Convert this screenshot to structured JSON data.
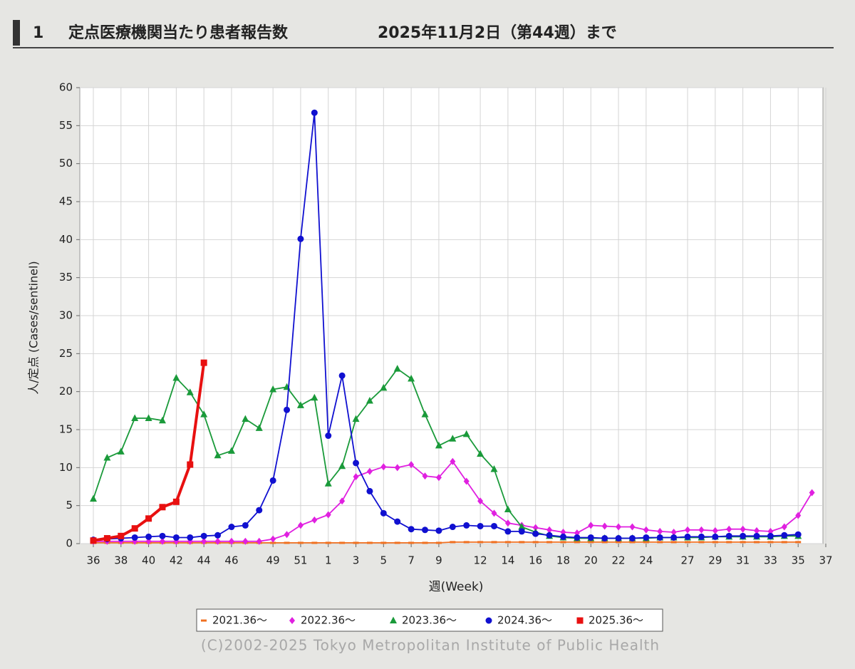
{
  "chart_data": {
    "type": "line",
    "section": "1",
    "title": "定点医療機関当たり患者報告数",
    "subtitle": "2025年11月2日（第44週）まで",
    "xlabel": "週(Week)",
    "ylabel": "人/定点 (Cases/sentinel)",
    "credit": "(C)2002-2025 Tokyo Metropolitan Institute of Public Health",
    "grid": true,
    "legend": "bottom",
    "ylim": [
      0,
      60
    ],
    "yticks": [
      0,
      5,
      10,
      15,
      20,
      25,
      30,
      35,
      40,
      45,
      50,
      55,
      60
    ],
    "categories": [
      "36",
      null,
      "38",
      null,
      "40",
      null,
      "42",
      null,
      "44",
      null,
      "46",
      null,
      null,
      "49",
      null,
      "51",
      null,
      "1",
      null,
      "3",
      null,
      "5",
      null,
      "7",
      null,
      "9",
      null,
      null,
      "12",
      null,
      "14",
      null,
      "16",
      null,
      "18",
      null,
      "20",
      null,
      "22",
      null,
      "24",
      null,
      null,
      "27",
      null,
      "29",
      null,
      "31",
      null,
      "33",
      null,
      "35",
      null,
      "37"
    ],
    "series": [
      {
        "name": "2021.36～",
        "color": "#f07020",
        "marker": "dash",
        "values": [
          0.1,
          0.1,
          0.1,
          0.1,
          0.1,
          0.1,
          0.1,
          0.1,
          0.1,
          0.1,
          0.1,
          0.1,
          0.1,
          0.1,
          0.1,
          0.1,
          0.1,
          0.1,
          0.1,
          0.1,
          0.1,
          0.1,
          0.1,
          0.1,
          0.1,
          0.1,
          0.2,
          0.2,
          0.2,
          0.2,
          0.2,
          0.2,
          0.2,
          0.2,
          0.2,
          0.2,
          0.2,
          0.2,
          0.2,
          0.2,
          0.2,
          0.2,
          0.2,
          0.2,
          0.2,
          0.2,
          0.2,
          0.2,
          0.2,
          0.2,
          0.2,
          0.2,
          null,
          null
        ]
      },
      {
        "name": "2022.36～",
        "color": "#e020e0",
        "marker": "diamond",
        "values": [
          0.3,
          0.3,
          0.3,
          0.3,
          0.3,
          0.3,
          0.3,
          0.3,
          0.3,
          0.3,
          0.3,
          0.3,
          0.3,
          0.6,
          1.2,
          2.4,
          3.1,
          3.8,
          5.6,
          8.8,
          9.5,
          10.1,
          10.0,
          10.4,
          8.9,
          8.7,
          10.8,
          8.2,
          5.6,
          4.0,
          2.7,
          2.4,
          2.1,
          1.8,
          1.5,
          1.4,
          2.4,
          2.3,
          2.2,
          2.2,
          1.8,
          1.6,
          1.5,
          1.8,
          1.8,
          1.7,
          1.9,
          1.9,
          1.7,
          1.6,
          2.2,
          3.7,
          6.7,
          null
        ]
      },
      {
        "name": "2023.36～",
        "color": "#1a9a3a",
        "marker": "triangle",
        "values": [
          5.9,
          11.3,
          12.1,
          16.5,
          16.5,
          16.2,
          21.8,
          19.9,
          17.0,
          11.6,
          12.2,
          16.4,
          15.2,
          20.3,
          20.6,
          18.2,
          19.2,
          7.9,
          10.2,
          16.4,
          18.8,
          20.5,
          23.0,
          21.7,
          17.0,
          12.9,
          13.8,
          14.4,
          11.8,
          9.8,
          4.5,
          2.2,
          1.5,
          1.0,
          0.8,
          0.7,
          0.7,
          0.7,
          0.7,
          0.7,
          0.7,
          0.8,
          0.8,
          0.8,
          0.8,
          0.9,
          0.9,
          0.9,
          0.9,
          0.9,
          1.0,
          1.0,
          null,
          null
        ]
      },
      {
        "name": "2024.36～",
        "color": "#1010d0",
        "marker": "circle",
        "values": [
          0.5,
          0.6,
          0.7,
          0.8,
          0.9,
          1.0,
          0.8,
          0.8,
          1.0,
          1.1,
          2.2,
          2.4,
          4.4,
          8.3,
          17.6,
          40.1,
          56.7,
          14.2,
          22.1,
          10.6,
          6.9,
          4.0,
          2.9,
          1.9,
          1.8,
          1.7,
          2.2,
          2.4,
          2.3,
          2.3,
          1.6,
          1.6,
          1.3,
          1.1,
          0.9,
          0.8,
          0.8,
          0.7,
          0.7,
          0.7,
          0.8,
          0.8,
          0.8,
          0.9,
          0.9,
          0.9,
          1.0,
          1.0,
          1.0,
          1.0,
          1.1,
          1.2,
          null,
          null
        ]
      },
      {
        "name": "2025.36～",
        "color": "#e81010",
        "marker": "square",
        "width": 4,
        "values": [
          0.4,
          0.7,
          1.0,
          2.0,
          3.3,
          4.8,
          5.5,
          10.4,
          23.8,
          null,
          null,
          null,
          null,
          null,
          null,
          null,
          null,
          null,
          null,
          null,
          null,
          null,
          null,
          null,
          null,
          null,
          null,
          null,
          null,
          null,
          null,
          null,
          null,
          null,
          null,
          null,
          null,
          null,
          null,
          null,
          null,
          null,
          null,
          null,
          null,
          null,
          null,
          null,
          null,
          null,
          null,
          null,
          null,
          null
        ]
      }
    ]
  }
}
